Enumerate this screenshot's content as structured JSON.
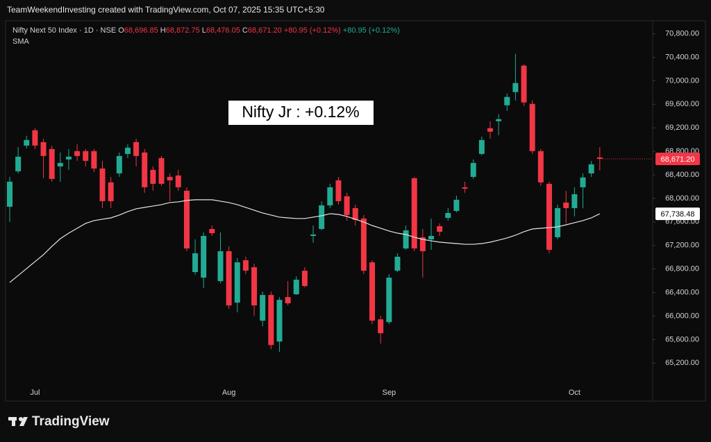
{
  "header": "TeamWeekendInvesting created with TradingView.com, Oct 07, 2025 15:35 UTC+5:30",
  "footer": {
    "brand": "TradingView"
  },
  "chart_data": {
    "type": "candlestick",
    "legend": {
      "symbol": "Nifty Next 50 Index · 1D · NSE",
      "o": "O",
      "open": "68,696.85",
      "h": "H",
      "high": "68,872.75",
      "l": "L",
      "low": "68,476.05",
      "c": "C",
      "close": "68,671.20",
      "change": "+80.95 (+0.12%)",
      "change_alt": "+80.95 (+0.12%)"
    },
    "annotation": "Nifty Jr : +0.12%",
    "last_price_label": "68,671.20",
    "up_color": "#22ab94",
    "down_color": "#f23645",
    "categories": [
      null,
      null,
      null,
      "Jul",
      null,
      null,
      null,
      null,
      null,
      null,
      null,
      null,
      null,
      null,
      null,
      null,
      null,
      null,
      null,
      null,
      null,
      null,
      null,
      null,
      null,
      null,
      "Aug",
      null,
      null,
      null,
      null,
      null,
      null,
      null,
      null,
      null,
      null,
      null,
      null,
      null,
      null,
      null,
      null,
      null,
      null,
      "Sep",
      null,
      null,
      null,
      null,
      null,
      null,
      null,
      null,
      null,
      null,
      null,
      null,
      null,
      null,
      null,
      null,
      null,
      null,
      null,
      null,
      null,
      "Oct",
      null,
      null,
      null
    ],
    "open": [
      67858,
      68461,
      68898,
      69158,
      68957,
      68839,
      68544,
      68662,
      68804,
      68804,
      68804,
      68508,
      68272,
      68425,
      68756,
      68957,
      68780,
      68485,
      68685,
      68366,
      68390,
      68130,
      66748,
      66653,
      67480,
      66594,
      67102,
      66228,
      66949,
      66830,
      65921,
      66358,
      65566,
      66322,
      66370,
      66771,
      67362,
      67480,
      67882,
      68307,
      68036,
      67835,
      67658,
      66913,
      65944,
      65897,
      66771,
      67149,
      68343,
      67339,
      67303,
      67528,
      67669,
      67787,
      68189,
      68366,
      68756,
      69193,
      69312,
      69583,
      69808,
      70257,
      69607,
      68804,
      68248,
      67339,
      67929,
      67835,
      68189,
      68425,
      68696.85
    ],
    "high": [
      68366,
      68874,
      69064,
      69193,
      69016,
      68898,
      68780,
      68839,
      68922,
      68839,
      68839,
      68638,
      68366,
      68780,
      68922,
      69016,
      68839,
      68544,
      68721,
      68425,
      68485,
      68189,
      67303,
      67421,
      67539,
      67421,
      67185,
      66984,
      67008,
      66890,
      66417,
      66417,
      66322,
      66594,
      66677,
      66830,
      67539,
      67953,
      68248,
      68366,
      68095,
      67894,
      67717,
      66949,
      66003,
      66712,
      67067,
      67539,
      68366,
      67480,
      67658,
      67575,
      67835,
      68047,
      68284,
      68662,
      69052,
      69312,
      69430,
      69784,
      70458,
      70280,
      69666,
      68839,
      68284,
      67894,
      68130,
      68189,
      68425,
      68638,
      68872.75
    ],
    "low": [
      67598,
      68425,
      68851,
      68839,
      68343,
      68284,
      68284,
      68485,
      68638,
      68544,
      68449,
      67835,
      67835,
      68366,
      68685,
      68544,
      68095,
      68130,
      68213,
      67953,
      68130,
      67102,
      66701,
      66476,
      67362,
      66559,
      66122,
      66063,
      66712,
      66003,
      65826,
      65436,
      65389,
      66181,
      66358,
      66488,
      67244,
      67457,
      67835,
      67894,
      67622,
      67539,
      66712,
      65862,
      65531,
      65862,
      66748,
      67126,
      67102,
      66653,
      67126,
      67362,
      67622,
      67764,
      68095,
      68331,
      68733,
      69016,
      69075,
      69489,
      69666,
      69572,
      68756,
      68213,
      67067,
      67303,
      67575,
      67693,
      67835,
      68366,
      68476.05
    ],
    "close": [
      68284,
      68709,
      68993,
      68898,
      68721,
      68331,
      68603,
      68709,
      68721,
      68638,
      68508,
      67953,
      67953,
      68721,
      68863,
      68721,
      68189,
      68248,
      68248,
      68307,
      68189,
      67149,
      67067,
      67362,
      67409,
      67102,
      66181,
      66913,
      66771,
      66181,
      66358,
      65507,
      66275,
      66216,
      66618,
      66511,
      67386,
      67882,
      68189,
      67953,
      67717,
      67634,
      66771,
      65921,
      65708,
      66653,
      67008,
      67457,
      67149,
      67102,
      67362,
      67433,
      67752,
      67977,
      68166,
      68603,
      68993,
      69134,
      69347,
      69725,
      69961,
      69631,
      68804,
      68272,
      67126,
      67835,
      67835,
      68071,
      68355,
      68579,
      68671.2
    ],
    "sma": {
      "name": "SMA",
      "color": "#e6e6e6",
      "label": "67,738.48",
      "values": [
        66571,
        66689,
        66807,
        66925,
        67043,
        67185,
        67315,
        67409,
        67492,
        67575,
        67622,
        67646,
        67669,
        67717,
        67776,
        67823,
        67847,
        67870,
        67894,
        67929,
        67941,
        67965,
        67977,
        67977,
        67977,
        67953,
        67929,
        67894,
        67847,
        67799,
        67752,
        67717,
        67681,
        67669,
        67658,
        67658,
        67681,
        67705,
        67740,
        67728,
        67693,
        67646,
        67598,
        67539,
        67492,
        67445,
        67409,
        67386,
        67339,
        67303,
        67279,
        67256,
        67244,
        67232,
        67220,
        67220,
        67232,
        67256,
        67291,
        67327,
        67374,
        67433,
        67480,
        67492,
        67504,
        67516,
        67551,
        67587,
        67622,
        67669,
        67738.48
      ]
    },
    "ylim": [
      64590,
      70960
    ],
    "yticks": [
      {
        "value": 65200,
        "label": "65,200.00"
      },
      {
        "value": 65600,
        "label": "65,600.00"
      },
      {
        "value": 66000,
        "label": "66,000.00"
      },
      {
        "value": 66400,
        "label": "66,400.00"
      },
      {
        "value": 66800,
        "label": "66,800.00"
      },
      {
        "value": 67200,
        "label": "67,200.00"
      },
      {
        "value": 67600,
        "label": "67,600.00"
      },
      {
        "value": 68000,
        "label": "68,000.00"
      },
      {
        "value": 68400,
        "label": "68,400.00"
      },
      {
        "value": 68800,
        "label": "68,800.00"
      },
      {
        "value": 69200,
        "label": "69,200.00"
      },
      {
        "value": 69600,
        "label": "69,600.00"
      },
      {
        "value": 70000,
        "label": "70,000.00"
      },
      {
        "value": 70400,
        "label": "70,400.00"
      },
      {
        "value": 70800,
        "label": "70,800.00"
      }
    ]
  }
}
